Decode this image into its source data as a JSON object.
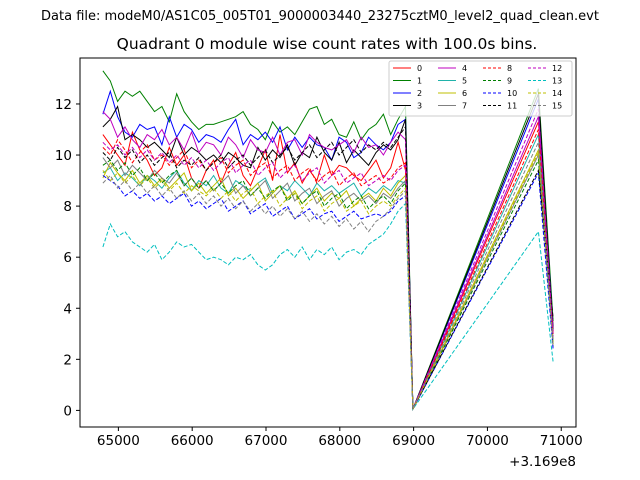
{
  "figure": {
    "suptitle": "Data file: modeM0/AS1C05_005T01_9000003440_23275cztM0_level2_quad_clean.evt",
    "title": "Quadrant 0 module wise count rates with 100.0s bins.",
    "x_offset_text": "+3.169e8"
  },
  "chart_data": {
    "type": "line",
    "title": "Quadrant 0 module wise count rates with 100.0s bins.",
    "xlabel": "",
    "ylabel": "",
    "x_offset": 316900000,
    "xlim": [
      64480,
      71200
    ],
    "ylim": [
      -0.65,
      13.8
    ],
    "xticks": [
      65000,
      66000,
      67000,
      68000,
      69000,
      70000,
      71000
    ],
    "xtick_labels": [
      "65000",
      "66000",
      "67000",
      "68000",
      "69000",
      "70000",
      "71000"
    ],
    "yticks": [
      0,
      2,
      4,
      6,
      8,
      10,
      12
    ],
    "ytick_labels": [
      "0",
      "2",
      "4",
      "6",
      "8",
      "10",
      "12"
    ],
    "grid": false,
    "legend": {
      "placement": "top-right",
      "columns": 4
    },
    "series": [
      {
        "name": "0",
        "color": "#ff0000",
        "dash": "solid",
        "values": [
          10.8,
          10.4,
          10.0,
          9.6,
          10.9,
          10.2,
          9.8,
          9.2,
          9.5,
          10.3,
          9.6,
          10.0,
          9.1,
          8.7,
          9.4,
          9.8,
          8.9,
          9.6,
          10.1,
          9.2,
          8.8,
          9.5,
          10.2,
          9.0,
          10.8,
          9.3,
          9.7,
          8.9,
          9.4,
          9.0,
          10.0,
          9.2,
          9.6,
          9.5,
          9.2,
          9.0,
          9.4,
          9.8,
          9.1,
          9.5,
          10.5,
          9.4,
          0.05,
          11.3,
          3.3
        ]
      },
      {
        "name": "1",
        "color": "#008000",
        "dash": "solid",
        "values": [
          13.3,
          12.9,
          12.1,
          12.5,
          12.3,
          12.5,
          12.1,
          11.7,
          11.9,
          11.3,
          12.4,
          11.7,
          11.3,
          11.0,
          11.2,
          11.2,
          11.3,
          11.4,
          11.5,
          11.7,
          11.2,
          11.0,
          10.6,
          11.3,
          10.9,
          11.1,
          10.8,
          11.3,
          11.8,
          11.9,
          11.2,
          11.4,
          10.8,
          10.7,
          11.3,
          10.6,
          11.0,
          11.2,
          11.6,
          10.8,
          11.4,
          11.9,
          0.05,
          12.6,
          3.5
        ]
      },
      {
        "name": "2",
        "color": "#0000ff",
        "dash": "solid",
        "values": [
          11.6,
          12.5,
          11.5,
          10.9,
          10.7,
          11.2,
          11.0,
          11.1,
          10.4,
          11.5,
          10.7,
          11.2,
          11.0,
          10.5,
          10.8,
          10.7,
          10.5,
          11.0,
          11.4,
          10.4,
          10.8,
          10.6,
          10.9,
          10.5,
          11.1,
          10.2,
          10.7,
          10.3,
          10.7,
          10.4,
          10.3,
          9.8,
          10.7,
          10.5,
          9.9,
          10.1,
          10.7,
          10.4,
          10.2,
          10.5,
          11.2,
          11.4,
          0.05,
          12.2,
          3.2
        ]
      },
      {
        "name": "3",
        "color": "#000000",
        "dash": "solid",
        "values": [
          11.1,
          11.4,
          11.9,
          10.6,
          10.8,
          10.6,
          10.3,
          10.5,
          10.2,
          9.9,
          10.7,
          10.0,
          10.3,
          10.1,
          9.8,
          10.0,
          9.7,
          10.1,
          9.9,
          9.6,
          9.5,
          10.3,
          9.8,
          10.2,
          9.9,
          10.4,
          9.6,
          10.1,
          9.9,
          10.7,
          10.1,
          9.8,
          10.5,
          9.7,
          10.2,
          9.9,
          9.6,
          10.1,
          10.4,
          10.2,
          10.6,
          11.4,
          0.05,
          12.4,
          3.1
        ]
      },
      {
        "name": "4",
        "color": "#bf00bf",
        "dash": "solid",
        "values": [
          11.7,
          11.4,
          10.7,
          11.1,
          10.6,
          10.3,
          10.8,
          10.6,
          11.0,
          10.4,
          10.7,
          10.2,
          10.9,
          10.1,
          10.5,
          10.4,
          10.0,
          10.7,
          10.4,
          9.9,
          10.6,
          10.2,
          10.1,
          10.7,
          10.0,
          10.5,
          10.6,
          10.0,
          10.8,
          10.5,
          10.3,
          10.2,
          10.4,
          10.6,
          10.1,
          10.7,
          10.3,
          10.4,
          10.0,
          10.5,
          10.9,
          10.6,
          0.05,
          11.5,
          3.0
        ]
      },
      {
        "name": "5",
        "color": "#20b2aa",
        "dash": "solid",
        "values": [
          9.3,
          9.5,
          9.0,
          9.3,
          9.1,
          8.8,
          9.2,
          9.0,
          8.7,
          9.1,
          9.4,
          8.9,
          8.6,
          9.0,
          8.8,
          9.2,
          8.7,
          8.5,
          9.0,
          8.8,
          8.6,
          8.9,
          9.1,
          8.5,
          8.8,
          8.6,
          9.0,
          8.7,
          8.4,
          8.9,
          8.6,
          8.8,
          8.5,
          8.7,
          8.9,
          8.4,
          8.7,
          8.5,
          8.8,
          8.6,
          9.0,
          8.9,
          0.05,
          10.8,
          2.7
        ]
      },
      {
        "name": "6",
        "color": "#bfbf00",
        "dash": "solid",
        "values": [
          9.1,
          9.7,
          9.3,
          9.0,
          9.4,
          8.9,
          9.2,
          8.8,
          9.1,
          8.7,
          9.0,
          9.3,
          8.6,
          8.9,
          8.5,
          8.8,
          9.1,
          8.4,
          8.7,
          8.3,
          8.6,
          8.9,
          8.2,
          8.5,
          8.8,
          8.3,
          8.6,
          8.1,
          8.4,
          8.7,
          8.2,
          8.5,
          8.3,
          8.6,
          8.0,
          8.3,
          8.5,
          8.2,
          8.7,
          8.4,
          8.9,
          9.2,
          0.05,
          10.2,
          2.6
        ]
      },
      {
        "name": "7",
        "color": "#808080",
        "dash": "solid",
        "values": [
          9.9,
          9.5,
          9.8,
          9.2,
          9.6,
          9.3,
          9.0,
          9.4,
          9.1,
          8.9,
          9.3,
          8.8,
          9.1,
          8.7,
          9.0,
          8.6,
          8.9,
          9.2,
          8.5,
          8.8,
          8.4,
          8.7,
          9.0,
          8.3,
          8.6,
          8.9,
          8.2,
          8.5,
          8.7,
          8.1,
          8.4,
          8.6,
          8.0,
          8.3,
          8.5,
          8.2,
          8.4,
          8.1,
          8.5,
          8.3,
          8.7,
          9.0,
          0.05,
          10.0,
          2.8
        ]
      },
      {
        "name": "8",
        "color": "#ff0000",
        "dash": "dashed",
        "values": [
          10.3,
          10.0,
          10.6,
          10.2,
          9.7,
          10.1,
          10.4,
          9.8,
          10.0,
          9.6,
          9.9,
          10.2,
          9.5,
          9.8,
          9.4,
          9.7,
          9.9,
          9.3,
          9.6,
          9.8,
          9.2,
          9.5,
          9.7,
          9.1,
          9.4,
          9.6,
          9.0,
          9.3,
          9.5,
          8.9,
          9.2,
          9.4,
          8.8,
          9.1,
          9.3,
          8.8,
          9.0,
          9.2,
          8.9,
          9.1,
          9.5,
          9.7,
          0.05,
          11.0,
          3.0
        ]
      },
      {
        "name": "9",
        "color": "#008000",
        "dash": "dashed",
        "values": [
          9.6,
          9.8,
          9.4,
          9.7,
          9.2,
          9.5,
          9.0,
          9.3,
          8.9,
          9.2,
          9.4,
          8.8,
          9.1,
          8.7,
          9.0,
          8.6,
          8.9,
          8.5,
          8.8,
          9.0,
          8.4,
          8.7,
          8.3,
          8.6,
          8.8,
          8.2,
          8.5,
          8.1,
          8.4,
          8.6,
          8.0,
          8.3,
          8.5,
          7.9,
          8.2,
          8.4,
          7.9,
          8.2,
          8.4,
          8.1,
          8.6,
          8.9,
          0.05,
          9.8,
          2.5
        ]
      },
      {
        "name": "10",
        "color": "#0000ff",
        "dash": "dashed",
        "values": [
          9.2,
          9.0,
          8.8,
          8.4,
          8.6,
          8.3,
          8.5,
          8.2,
          8.4,
          8.1,
          8.3,
          8.5,
          8.0,
          8.2,
          7.9,
          8.1,
          8.3,
          7.8,
          8.0,
          8.2,
          7.7,
          7.9,
          8.1,
          7.6,
          7.8,
          8.0,
          7.5,
          7.7,
          7.9,
          7.5,
          7.7,
          7.8,
          7.4,
          7.6,
          7.8,
          7.5,
          7.6,
          7.7,
          7.6,
          7.8,
          8.2,
          8.4,
          0.05,
          9.3,
          2.4
        ]
      },
      {
        "name": "11",
        "color": "#000000",
        "dash": "dashed",
        "values": [
          10.1,
          9.8,
          10.3,
          9.9,
          10.2,
          9.7,
          10.0,
          9.6,
          9.9,
          10.1,
          9.5,
          9.8,
          9.6,
          9.9,
          9.4,
          9.7,
          10.0,
          9.5,
          9.8,
          10.0,
          9.6,
          9.9,
          10.2,
          9.7,
          10.0,
          10.3,
          9.8,
          10.1,
          10.4,
          9.9,
          10.2,
          10.5,
          10.0,
          10.3,
          10.6,
          10.1,
          10.4,
          10.2,
          10.5,
          10.3,
          10.7,
          11.1,
          0.05,
          9.4,
          3.6
        ]
      },
      {
        "name": "12",
        "color": "#bf00bf",
        "dash": "dashed",
        "values": [
          10.5,
          10.2,
          10.4,
          10.0,
          10.3,
          9.9,
          10.2,
          9.8,
          10.1,
          9.7,
          10.0,
          9.6,
          9.9,
          9.5,
          9.8,
          9.4,
          9.7,
          9.9,
          9.3,
          9.6,
          9.8,
          9.2,
          9.5,
          9.7,
          9.1,
          9.4,
          9.6,
          9.0,
          9.3,
          9.5,
          8.9,
          9.2,
          9.4,
          8.9,
          9.1,
          9.3,
          8.8,
          9.0,
          9.2,
          9.0,
          9.4,
          9.6,
          0.05,
          11.8,
          2.9
        ]
      },
      {
        "name": "13",
        "color": "#00bfbf",
        "dash": "dashed",
        "values": [
          6.4,
          7.3,
          6.8,
          7.0,
          6.6,
          6.4,
          6.2,
          6.5,
          5.9,
          6.2,
          6.6,
          6.4,
          6.5,
          6.2,
          5.9,
          6.0,
          5.9,
          5.7,
          6.0,
          5.9,
          6.1,
          5.7,
          5.5,
          5.7,
          6.1,
          6.3,
          6.0,
          6.4,
          5.9,
          6.3,
          6.1,
          6.4,
          5.9,
          6.2,
          6.3,
          6.1,
          6.5,
          6.7,
          6.9,
          7.3,
          7.8,
          8.1,
          0.05,
          7.0,
          1.9
        ]
      },
      {
        "name": "14",
        "color": "#bfbf00",
        "dash": "dashed",
        "values": [
          9.4,
          9.0,
          9.3,
          8.9,
          9.2,
          8.8,
          9.1,
          8.7,
          9.0,
          8.6,
          8.9,
          8.5,
          8.8,
          8.6,
          8.4,
          8.7,
          8.3,
          8.6,
          8.2,
          8.5,
          8.7,
          8.1,
          8.4,
          8.6,
          8.0,
          8.3,
          8.5,
          7.9,
          8.2,
          8.4,
          7.8,
          8.1,
          8.3,
          7.8,
          8.0,
          8.2,
          7.7,
          8.0,
          8.2,
          8.0,
          8.4,
          8.7,
          0.05,
          10.1,
          2.6
        ]
      },
      {
        "name": "15",
        "color": "#808080",
        "dash": "dashed",
        "values": [
          8.9,
          9.2,
          8.7,
          9.0,
          8.6,
          8.9,
          8.5,
          8.8,
          8.4,
          8.7,
          8.3,
          8.6,
          8.2,
          8.5,
          8.1,
          8.4,
          8.0,
          8.3,
          7.9,
          8.2,
          7.8,
          8.1,
          7.7,
          8.0,
          7.6,
          7.9,
          7.5,
          7.8,
          7.4,
          7.7,
          7.3,
          7.6,
          7.2,
          7.5,
          7.1,
          7.4,
          7.0,
          7.4,
          7.6,
          7.9,
          8.3,
          8.6,
          0.05,
          10.5,
          2.5
        ]
      }
    ],
    "x": [
      64790,
      64890,
      64990,
      65090,
      65190,
      65290,
      65390,
      65490,
      65590,
      65690,
      65790,
      65890,
      65990,
      66090,
      66190,
      66290,
      66390,
      66490,
      66590,
      66690,
      66790,
      66890,
      66990,
      67090,
      67190,
      67290,
      67390,
      67490,
      67590,
      67690,
      67790,
      67890,
      67990,
      68090,
      68190,
      68290,
      68390,
      68490,
      68590,
      68690,
      68790,
      68890,
      68990,
      70690,
      70890
    ]
  }
}
